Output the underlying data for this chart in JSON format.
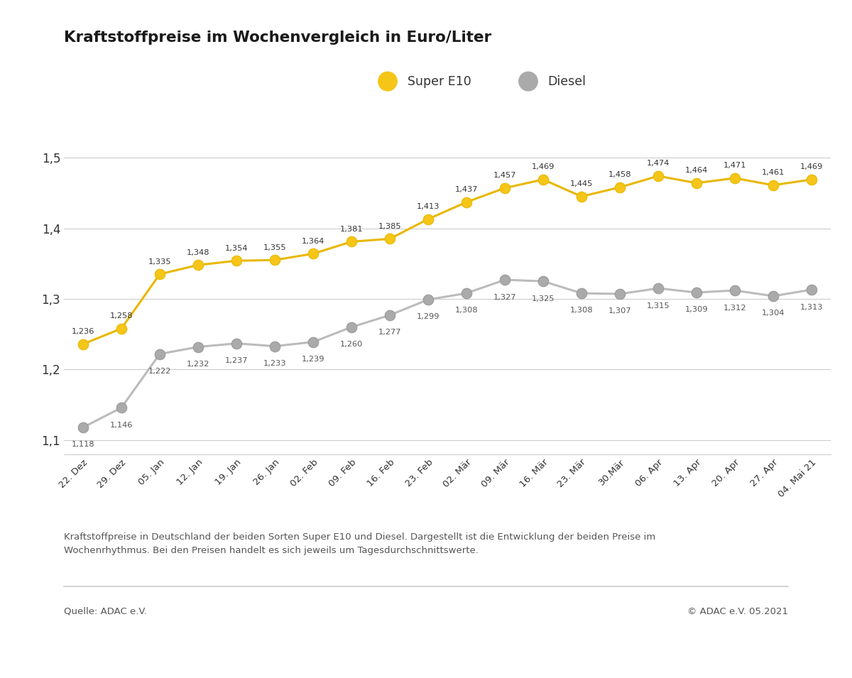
{
  "title": "Kraftstoffpreise im Wochenvergleich in Euro/Liter",
  "labels": [
    "22. Dez",
    "29. Dez",
    "05. Jan",
    "12. Jan",
    "19. Jan",
    "26. Jan",
    "02. Feb",
    "09. Feb",
    "16. Feb",
    "23. Feb",
    "02. Mär",
    "09. Mär",
    "16. Mär",
    "23. Mär",
    "30.Mär",
    "06. Apr",
    "13. Apr",
    "20. Apr",
    "27. Apr",
    "04. Mai 21"
  ],
  "super_e10": [
    1.236,
    1.258,
    1.335,
    1.348,
    1.354,
    1.355,
    1.364,
    1.381,
    1.385,
    1.413,
    1.437,
    1.457,
    1.469,
    1.445,
    1.458,
    1.474,
    1.464,
    1.471,
    1.461,
    1.469
  ],
  "diesel": [
    1.118,
    1.146,
    1.222,
    1.232,
    1.237,
    1.233,
    1.239,
    1.26,
    1.277,
    1.299,
    1.308,
    1.327,
    1.325,
    1.308,
    1.307,
    1.315,
    1.309,
    1.312,
    1.304,
    1.313
  ],
  "super_color": "#F5C518",
  "diesel_color": "#AAAAAA",
  "line_color_super": "#E8B800",
  "line_color_diesel": "#BBBBBB",
  "ylim": [
    1.08,
    1.56
  ],
  "yticks": [
    1.1,
    1.2,
    1.3,
    1.4,
    1.5
  ],
  "ytick_labels": [
    "1,1",
    "1,2",
    "1,3",
    "1,4",
    "1,5"
  ],
  "footnote_line1": "Kraftstoffpreise in Deutschland der beiden Sorten Super E10 und Diesel. Dargestellt ist die Entwicklung der beiden Preise im",
  "footnote_line2": "Wochenrhythmus. Bei den Preisen handelt es sich jeweils um Tagesdurchschnittswerte.",
  "source_left": "Quelle: ADAC e.V.",
  "source_right": "© ADAC e.V. 05.2021",
  "legend_super": "Super E10",
  "legend_diesel": "Diesel",
  "bg_color": "#FFFFFF",
  "grid_color": "#CCCCCC",
  "text_color": "#333333",
  "annotation_color_super": "#333333",
  "annotation_color_diesel": "#555555"
}
